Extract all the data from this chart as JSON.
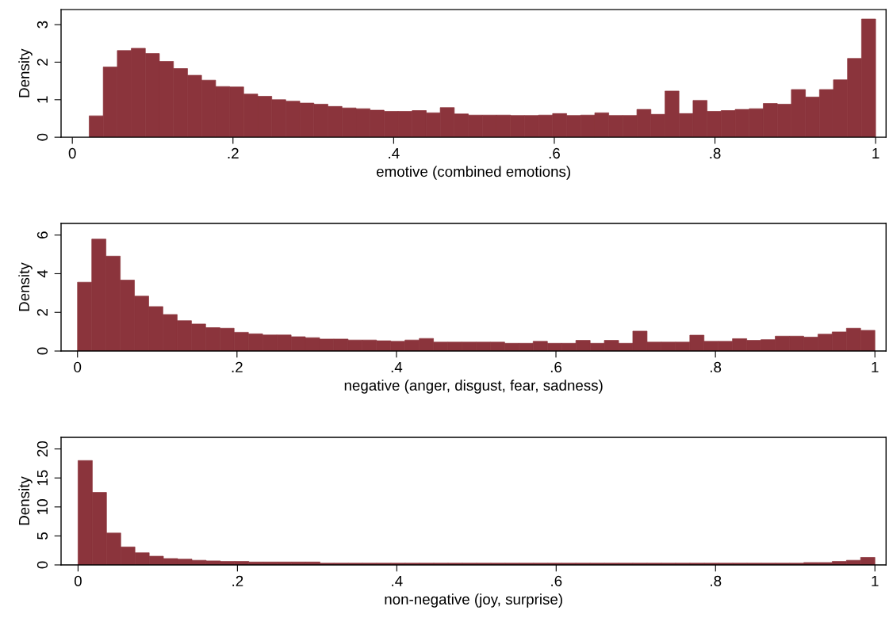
{
  "chart_data": [
    {
      "type": "histogram",
      "xlabel": "emotive (combined emotions)",
      "ylabel": "Density",
      "color": "#8b343c",
      "bins": [
        0.021,
        0.0385,
        0.056,
        0.0734,
        0.0909,
        0.1084,
        0.1259,
        0.1434,
        0.1609,
        0.1784,
        0.1958,
        0.2133,
        0.2308,
        0.2483,
        0.2657,
        0.2832,
        0.3007,
        0.3182,
        0.3357,
        0.3532,
        0.3706,
        0.3881,
        0.4056,
        0.4231,
        0.4406,
        0.458,
        0.4755,
        0.493,
        0.5105,
        0.528,
        0.5455,
        0.5629,
        0.5804,
        0.5979,
        0.6154,
        0.6329,
        0.6504,
        0.6678,
        0.6853,
        0.7028,
        0.7203,
        0.7378,
        0.7552,
        0.7727,
        0.7902,
        0.8077,
        0.8252,
        0.8427,
        0.8601,
        0.8776,
        0.8951,
        0.9126,
        0.9301,
        0.9475,
        0.965,
        0.9825,
        1.0
      ],
      "values": [
        0.57,
        1.87,
        2.31,
        2.37,
        2.23,
        2.02,
        1.83,
        1.65,
        1.52,
        1.35,
        1.34,
        1.15,
        1.09,
        1.0,
        0.96,
        0.91,
        0.88,
        0.82,
        0.78,
        0.76,
        0.72,
        0.69,
        0.69,
        0.71,
        0.65,
        0.79,
        0.62,
        0.59,
        0.59,
        0.59,
        0.58,
        0.58,
        0.59,
        0.63,
        0.58,
        0.59,
        0.65,
        0.58,
        0.58,
        0.74,
        0.61,
        1.23,
        0.63,
        0.98,
        0.69,
        0.71,
        0.74,
        0.76,
        0.9,
        0.88,
        1.27,
        1.07,
        1.27,
        1.53,
        2.1,
        3.15
      ],
      "xlim": [
        -0.014,
        1.013
      ],
      "ylim": [
        0,
        3.4
      ],
      "xticks": [
        0,
        {
          "value": 0.2,
          "label": ".2"
        },
        {
          "value": 0.4,
          "label": ".4"
        },
        {
          "value": 0.6,
          "label": ".6"
        },
        {
          "value": 0.8,
          "label": ".8"
        },
        1
      ],
      "yticks": [
        0,
        1,
        2,
        3
      ]
    },
    {
      "type": "histogram",
      "xlabel": "negative (anger, disgust, fear, sadness)",
      "ylabel": "Density",
      "color": "#8b343c",
      "bins": [
        0,
        0.0179,
        0.0357,
        0.0536,
        0.0714,
        0.0893,
        0.1071,
        0.125,
        0.1429,
        0.1607,
        0.1786,
        0.1964,
        0.2143,
        0.2321,
        0.25,
        0.2679,
        0.2857,
        0.3036,
        0.3214,
        0.3393,
        0.3571,
        0.375,
        0.3929,
        0.4107,
        0.4286,
        0.4464,
        0.4643,
        0.4821,
        0.5,
        0.5179,
        0.5357,
        0.5536,
        0.5714,
        0.5893,
        0.6071,
        0.625,
        0.6429,
        0.6607,
        0.6786,
        0.6964,
        0.7143,
        0.7321,
        0.75,
        0.7679,
        0.7857,
        0.8036,
        0.8214,
        0.8393,
        0.8571,
        0.875,
        0.8929,
        0.9107,
        0.9286,
        0.9464,
        0.9643,
        0.9821,
        1
      ],
      "values": [
        3.56,
        5.79,
        4.91,
        3.67,
        2.84,
        2.3,
        1.89,
        1.57,
        1.4,
        1.21,
        1.18,
        0.97,
        0.89,
        0.83,
        0.83,
        0.74,
        0.69,
        0.62,
        0.62,
        0.57,
        0.57,
        0.53,
        0.5,
        0.57,
        0.65,
        0.46,
        0.46,
        0.46,
        0.46,
        0.46,
        0.4,
        0.4,
        0.5,
        0.4,
        0.4,
        0.55,
        0.4,
        0.55,
        0.4,
        1.03,
        0.46,
        0.46,
        0.46,
        0.82,
        0.5,
        0.5,
        0.64,
        0.55,
        0.59,
        0.77,
        0.77,
        0.72,
        0.87,
        0.99,
        1.18,
        1.07
      ],
      "xlim": [
        -0.0206,
        1.014
      ],
      "ylim": [
        0,
        6.6
      ],
      "xticks": [
        0,
        {
          "value": 0.2,
          "label": ".2"
        },
        {
          "value": 0.4,
          "label": ".4"
        },
        {
          "value": 0.6,
          "label": ".6"
        },
        {
          "value": 0.8,
          "label": ".8"
        },
        1
      ],
      "yticks": [
        0,
        2,
        4,
        6
      ]
    },
    {
      "type": "histogram",
      "xlabel": "non-negative (joy, surprise)",
      "ylabel": "Density",
      "color": "#8b343c",
      "bins": [
        0,
        0.0179,
        0.0357,
        0.0536,
        0.0714,
        0.0893,
        0.1071,
        0.125,
        0.1429,
        0.1607,
        0.1786,
        0.1964,
        0.2143,
        0.2321,
        0.25,
        0.2679,
        0.2857,
        0.3036,
        0.3214,
        0.3393,
        0.3571,
        0.375,
        0.3929,
        0.4107,
        0.4286,
        0.4464,
        0.4643,
        0.4821,
        0.5,
        0.5179,
        0.5357,
        0.5536,
        0.5714,
        0.5893,
        0.6071,
        0.625,
        0.6429,
        0.6607,
        0.6786,
        0.6964,
        0.7143,
        0.7321,
        0.75,
        0.7679,
        0.7857,
        0.8036,
        0.8214,
        0.8393,
        0.8571,
        0.875,
        0.8929,
        0.9107,
        0.9286,
        0.9464,
        0.9643,
        0.9821,
        1
      ],
      "values": [
        18.0,
        12.5,
        5.5,
        3.1,
        2.1,
        1.5,
        1.1,
        1.0,
        0.8,
        0.7,
        0.6,
        0.6,
        0.5,
        0.5,
        0.5,
        0.5,
        0.5,
        0.3,
        0.3,
        0.3,
        0.3,
        0.3,
        0.3,
        0.3,
        0.3,
        0.3,
        0.3,
        0.3,
        0.3,
        0.3,
        0.3,
        0.3,
        0.3,
        0.3,
        0.3,
        0.3,
        0.3,
        0.3,
        0.3,
        0.3,
        0.3,
        0.3,
        0.3,
        0.3,
        0.3,
        0.3,
        0.3,
        0.3,
        0.3,
        0.3,
        0.3,
        0.4,
        0.4,
        0.6,
        0.8,
        1.3
      ],
      "xlim": [
        -0.0213,
        1.014
      ],
      "ylim": [
        0,
        22
      ],
      "xticks": [
        0,
        {
          "value": 0.2,
          "label": ".2"
        },
        {
          "value": 0.4,
          "label": ".4"
        },
        {
          "value": 0.6,
          "label": ".6"
        },
        {
          "value": 0.8,
          "label": ".8"
        },
        1
      ],
      "yticks": [
        0,
        5,
        10,
        15,
        20
      ]
    }
  ]
}
